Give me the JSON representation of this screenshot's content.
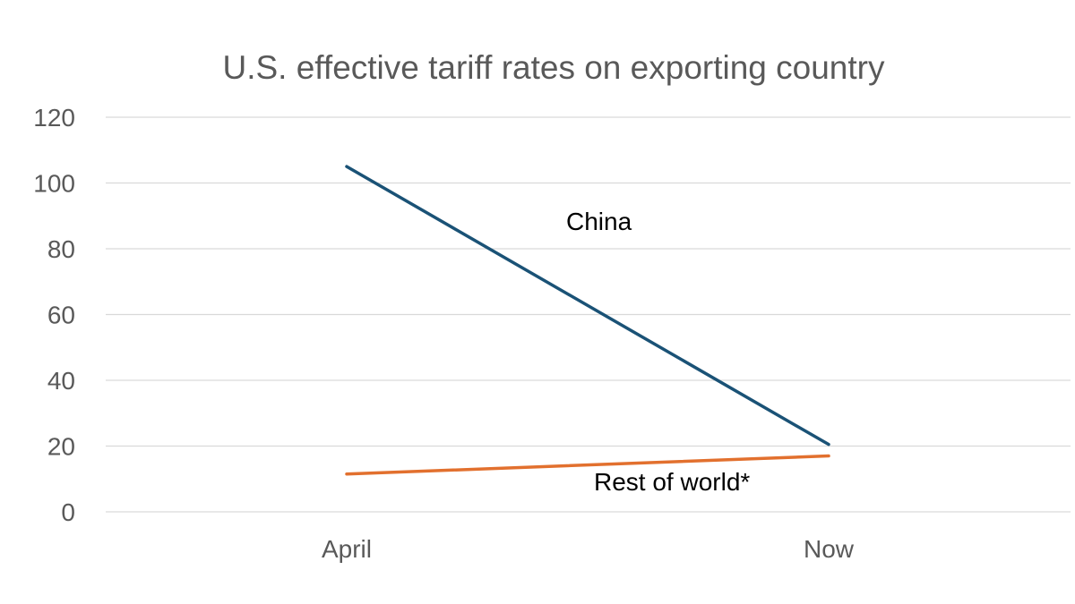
{
  "chart_data": {
    "type": "line",
    "title": "U.S. effective tariff rates on exporting country",
    "xlabel": "",
    "ylabel": "",
    "categories": [
      "April",
      "Now"
    ],
    "ylim": [
      0,
      120
    ],
    "yticks": [
      0,
      20,
      40,
      60,
      80,
      100,
      120
    ],
    "grid": true,
    "legend": "none",
    "series": [
      {
        "name": "China",
        "values": [
          105,
          20.5
        ],
        "color": "#1a5276",
        "label": "China"
      },
      {
        "name": "Rest of world*",
        "values": [
          11.5,
          17
        ],
        "color": "#e2702e",
        "label": "Rest of world*"
      }
    ]
  }
}
